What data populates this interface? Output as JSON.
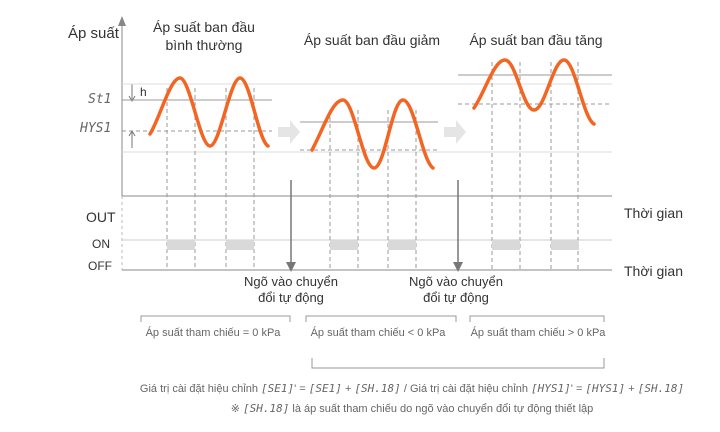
{
  "y_axis_label": "Áp suất",
  "phases": [
    {
      "title_line1": "Áp suất ban đầu",
      "title_line2": "bình thường",
      "reference": "Áp suất tham chiếu = 0 kPa"
    },
    {
      "title_line1": "Áp suất ban đầu giảm",
      "title_line2": "",
      "reference": "Áp suất tham chiếu < 0 kPa"
    },
    {
      "title_line1": "Áp suất ban đầu tăng",
      "title_line2": "",
      "reference": "Áp suất tham chiếu > 0 kPa"
    }
  ],
  "set_label": "St1",
  "hys_label": "HYS1",
  "h_label": "h",
  "out_label": "OUT",
  "on_label": "ON",
  "off_label": "OFF",
  "time_label_top": "Thời gian",
  "time_label_bottom": "Thời gian",
  "auto_shift_input": {
    "line1": "Ngõ vào chuyển",
    "line2": "đổi tự động"
  },
  "formula_parts": [
    "Giá trị cài đặt hiệu chỉnh ",
    "[SE1]",
    "' = ",
    "[SE1]",
    " + ",
    "[SH.18]",
    " / Giá trị cài đặt hiệu chỉnh ",
    "[HYS1]",
    "' = ",
    "[HYS1]",
    " + ",
    "[SH.18]"
  ],
  "note_parts": [
    "※ ",
    "[SH.18]",
    " là áp suất tham chiếu do ngõ vào chuyển đổi tự động thiết lập"
  ],
  "colors": {
    "wave": "#f26522",
    "arrow": "#dddddd",
    "grid": "#888888",
    "on_block": "#d9d9d9"
  }
}
